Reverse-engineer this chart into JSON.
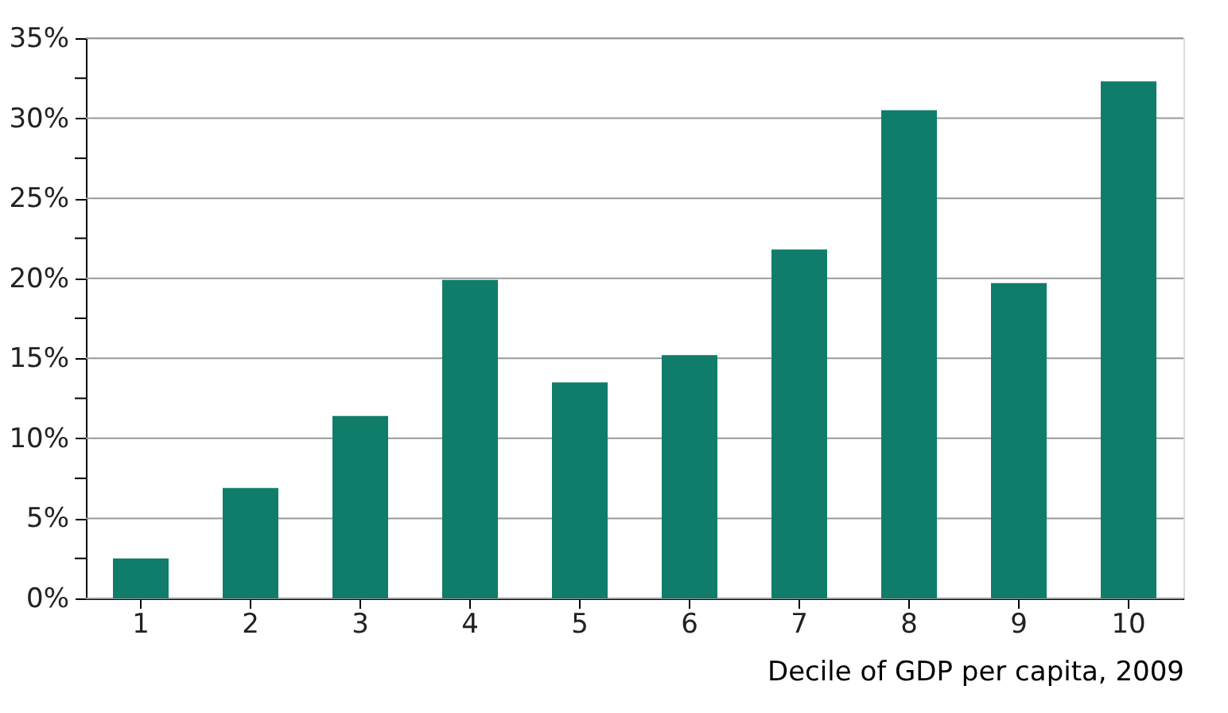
{
  "chart_data": {
    "type": "bar",
    "xlabel": "Decile of GDP per capita, 2009",
    "categories": [
      "1",
      "2",
      "3",
      "4",
      "5",
      "6",
      "7",
      "8",
      "9",
      "10"
    ],
    "values": [
      2.5,
      6.9,
      11.4,
      19.9,
      13.5,
      15.2,
      21.8,
      30.5,
      19.7,
      32.3
    ],
    "color": "#0f7d6a",
    "ylim": [
      0,
      35
    ],
    "yticks": [
      {
        "value": 0,
        "label": "0%"
      },
      {
        "value": 2.5,
        "label": null
      },
      {
        "value": 5,
        "label": "5%"
      },
      {
        "value": 7.5,
        "label": null
      },
      {
        "value": 10,
        "label": "10%"
      },
      {
        "value": 12.5,
        "label": null
      },
      {
        "value": 15,
        "label": "15%"
      },
      {
        "value": 17.5,
        "label": null
      },
      {
        "value": 20,
        "label": "20%"
      },
      {
        "value": 22.5,
        "label": null
      },
      {
        "value": 25,
        "label": "25%"
      },
      {
        "value": 27.5,
        "label": null
      },
      {
        "value": 30,
        "label": "30%"
      },
      {
        "value": 32.5,
        "label": null
      },
      {
        "value": 35,
        "label": "35%"
      }
    ],
    "grid": "y"
  }
}
